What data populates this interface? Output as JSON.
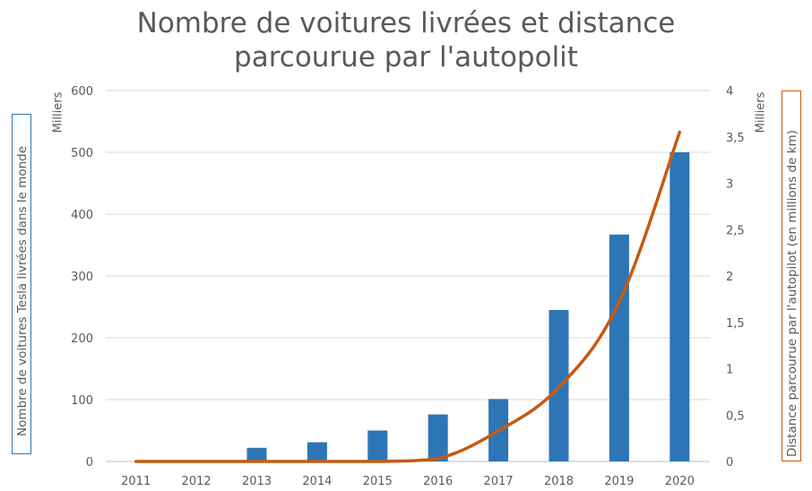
{
  "chart_data": {
    "type": "bar+line",
    "title": "Nombre de voitures livrées et distance parcourue par l'autopolit",
    "title_lines": [
      "Nombre de voitures livrées et distance",
      "parcourue par l'autopolit"
    ],
    "categories": [
      "2011",
      "2012",
      "2013",
      "2014",
      "2015",
      "2016",
      "2017",
      "2018",
      "2019",
      "2020"
    ],
    "series": [
      {
        "name": "Nombre de voitures Tesla livrées dans le monde",
        "type": "bar",
        "axis": "left",
        "color": "#2e75b6",
        "values": [
          0,
          0,
          22,
          31,
          50,
          76,
          101,
          245,
          367,
          500
        ]
      },
      {
        "name": "Distance parcourue par l'autopilot (en millions de km)",
        "type": "line",
        "axis": "right",
        "color": "#c55a11",
        "values": [
          0,
          0,
          0,
          0,
          0,
          0.03,
          0.33,
          0.8,
          1.72,
          3.55
        ]
      }
    ],
    "ylabel_left": "Nombre de voitures Tesla livrées dans le monde",
    "ylabel_right": "Distance parcourue par l'autopilot (en millions de km)",
    "units_left": "Milliers",
    "units_right": "Milliers",
    "ylim_left": [
      0,
      600
    ],
    "ylim_right": [
      0,
      4
    ],
    "yticks_left": [
      "0",
      "100",
      "200",
      "300",
      "400",
      "500",
      "600"
    ],
    "yticks_right": [
      "0",
      "0,5",
      "1",
      "1,5",
      "2",
      "2,5",
      "3",
      "3,5",
      "4"
    ],
    "grid": true,
    "legend": "none"
  }
}
